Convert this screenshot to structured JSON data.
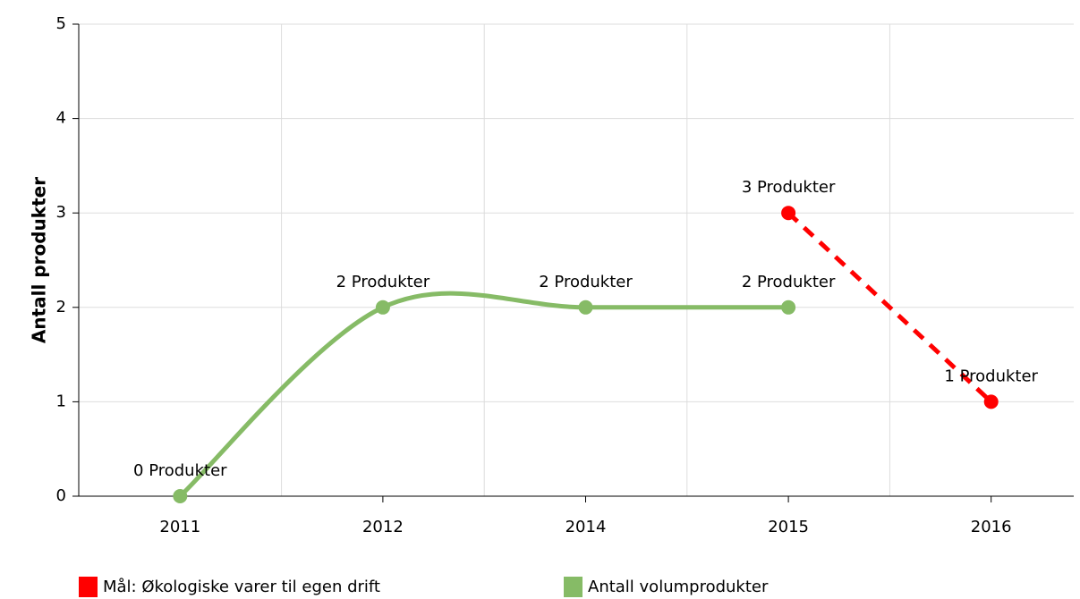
{
  "chart_data": {
    "type": "line",
    "y_label": "Antall produkter",
    "categories": [
      "2011",
      "2012",
      "2014",
      "2015",
      "2016"
    ],
    "series": [
      {
        "name": "Mål: Økologiske varer til egen drift",
        "color": "#ff0000",
        "dashed": true,
        "values": [
          null,
          null,
          null,
          3,
          1
        ],
        "value_labels": [
          null,
          null,
          null,
          "3 Produkter",
          "1 Produkter"
        ]
      },
      {
        "name": "Antall volumprodukter",
        "color": "#86bb66",
        "dashed": false,
        "values": [
          0,
          2,
          2,
          2,
          null
        ],
        "value_labels": [
          "0 Produkter",
          "2 Produkter",
          "2 Produkter",
          "2 Produkter",
          null
        ]
      }
    ],
    "ylim": [
      0,
      5
    ],
    "yticks": [
      0,
      1,
      2,
      3,
      4,
      5
    ],
    "grid": true
  }
}
